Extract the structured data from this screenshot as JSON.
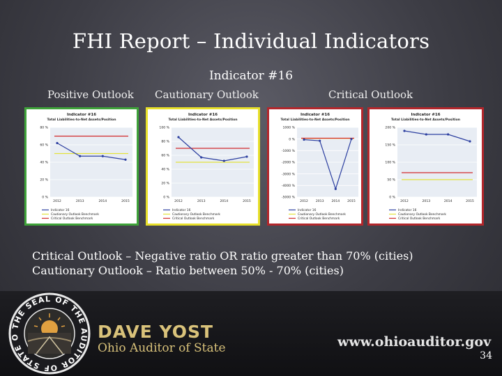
{
  "slide": {
    "title": "FHI Report – Individual Indicators",
    "subtitle": "Indicator #16",
    "labels": [
      "Positive Outlook",
      "Cautionary Outlook",
      "Critical Outlook"
    ],
    "desc1": "Critical Outlook – Negative ratio  OR  ratio greater than 70% (cities)",
    "desc2": "Cautionary Outlook – Ratio between 50% - 70% (cities)",
    "name": "DAVE YOST",
    "role": "Ohio Auditor of State",
    "url": "www.ohioauditor.gov",
    "page": "34"
  },
  "colors": {
    "green": "#3fa33a",
    "yellow": "#e8e02a",
    "red": "#b3272c",
    "series": "#2c3fa0",
    "cautionLine": "#e3e23a",
    "criticalLine": "#d12a2a"
  },
  "chart_data": [
    {
      "type": "line",
      "title": "Indicator #16",
      "subtitle": "Total Liabilities-to-Net Assets/Position",
      "x": [
        "2012",
        "2013",
        "2014",
        "2015"
      ],
      "yticks": [
        "0 %",
        "20 %",
        "40 %",
        "60 %",
        "80 %"
      ],
      "ylim": [
        0,
        80
      ],
      "series": [
        {
          "name": "Indicator 16",
          "values": [
            62,
            47,
            47,
            43
          ]
        }
      ],
      "caution": 50,
      "critical": 70,
      "legend": [
        "Indicator 16",
        "Cautionary Outlook Benchmark",
        "Critical Outlook Benchmark"
      ]
    },
    {
      "type": "line",
      "title": "Indicator #16",
      "subtitle": "Total Liabilities-to-Net Assets/Position",
      "x": [
        "2012",
        "2013",
        "2014",
        "2015"
      ],
      "yticks": [
        "0 %",
        "20 %",
        "40 %",
        "60 %",
        "80 %",
        "100 %"
      ],
      "ylim": [
        0,
        100
      ],
      "series": [
        {
          "name": "Indicator 16",
          "values": [
            86,
            57,
            52,
            58
          ]
        }
      ],
      "caution": 50,
      "critical": 70,
      "legend": [
        "Indicator 16",
        "Cautionary Outlook Benchmark",
        "Critical Outlook Benchmark"
      ]
    },
    {
      "type": "line",
      "title": "Indicator #16",
      "subtitle": "Total Liabilities-to-Net Assets/Position",
      "x": [
        "2012",
        "2013",
        "2014",
        "2015"
      ],
      "yticks": [
        "-5000 %",
        "-4000 %",
        "-3000 %",
        "-2000 %",
        "-1000 %",
        "0 %",
        "1000 %"
      ],
      "ylim": [
        -5000,
        1000
      ],
      "series": [
        {
          "name": "Indicator 16",
          "values": [
            -50,
            -150,
            -4300,
            0
          ]
        }
      ],
      "caution": 50,
      "critical": 70,
      "legend": [
        "Indicator 16",
        "Cautionary Outlook Benchmark",
        "Critical Outlook Benchmark"
      ]
    },
    {
      "type": "line",
      "title": "Indicator #16",
      "subtitle": "Total Liabilities-to-Net Assets/Position",
      "x": [
        "2012",
        "2013",
        "2014",
        "2015"
      ],
      "yticks": [
        "0 %",
        "50 %",
        "100 %",
        "150 %",
        "200 %"
      ],
      "ylim": [
        0,
        200
      ],
      "series": [
        {
          "name": "Indicator 16",
          "values": [
            190,
            180,
            180,
            160
          ]
        }
      ],
      "caution": 50,
      "critical": 70,
      "legend": [
        "Indicator 16",
        "Cautionary Outlook Benchmark",
        "Critical Outlook Benchmark"
      ]
    }
  ]
}
